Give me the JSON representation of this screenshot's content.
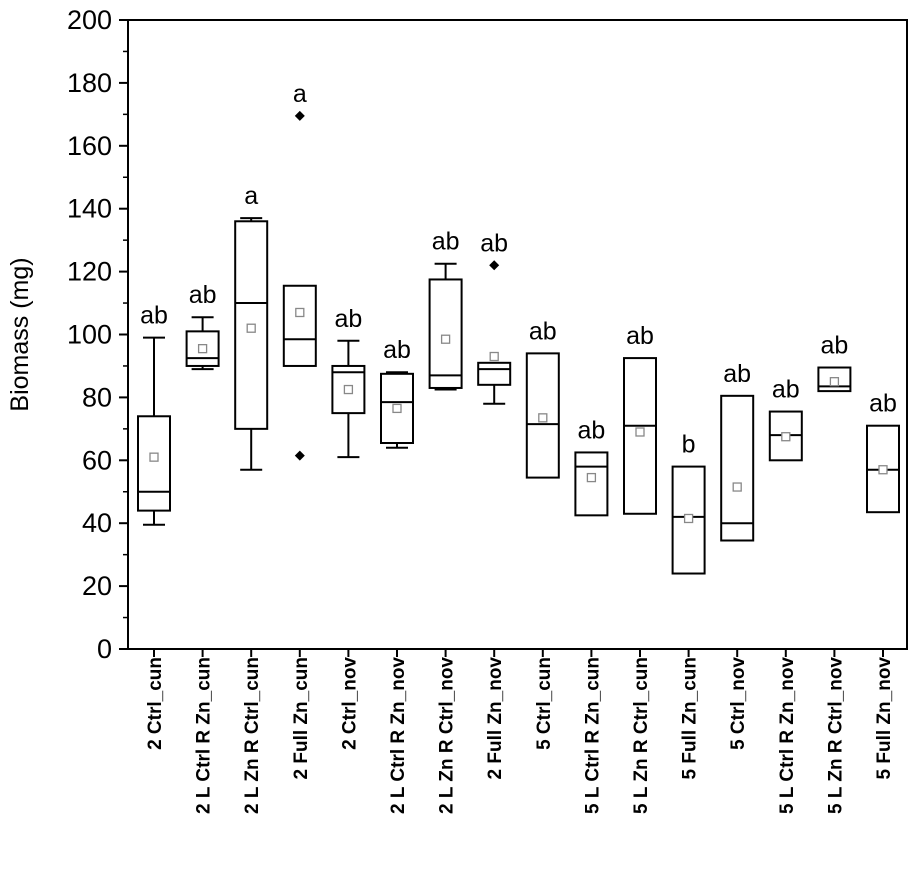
{
  "chart_data": {
    "type": "box",
    "xlabel": "",
    "ylabel": "Biomass (mg)",
    "ylim": [
      0,
      200
    ],
    "yticks": [
      0,
      20,
      40,
      60,
      80,
      100,
      120,
      140,
      160,
      180,
      200
    ],
    "grid": false,
    "legend": "none",
    "categories": [
      "2 Ctrl_cun",
      "2 L Ctrl R Zn_cun",
      "2 L Zn R Ctrl_cun",
      "2 Full Zn_cun",
      "2 Ctrl_nov",
      "2 L Ctrl R Zn_nov",
      "2 L Zn R Ctrl_nov",
      "2 Full Zn_nov",
      "5 Ctrl_cun",
      "5 L Ctrl R Zn_cun",
      "5 L Zn R Ctrl_cun",
      "5 Full Zn_cun",
      "5 Ctrl_nov",
      "5 L Ctrl R Zn_nov",
      "5 L Zn R Ctrl_nov",
      "5 Full Zn_nov"
    ],
    "boxes": [
      {
        "q1": 44,
        "median": 50,
        "q3": 74,
        "mean": 61,
        "whisker_low": 39.5,
        "whisker_high": 99,
        "outliers": [],
        "letter": "ab"
      },
      {
        "q1": 90,
        "median": 92.5,
        "q3": 101,
        "mean": 95.5,
        "whisker_low": 89,
        "whisker_high": 105.5,
        "outliers": [],
        "letter": "ab"
      },
      {
        "q1": 70,
        "median": 110,
        "q3": 136,
        "mean": 102,
        "whisker_low": 57,
        "whisker_high": 137,
        "outliers": [],
        "letter": "a"
      },
      {
        "q1": 90,
        "median": 98.5,
        "q3": 115.5,
        "mean": 107,
        "whisker_low": null,
        "whisker_high": null,
        "outliers": [
          169.5,
          61.5
        ],
        "letter": "a"
      },
      {
        "q1": 75,
        "median": 88,
        "q3": 90,
        "mean": 82.5,
        "whisker_low": 61,
        "whisker_high": 98,
        "outliers": [],
        "letter": "ab"
      },
      {
        "q1": 65.5,
        "median": 78.5,
        "q3": 87.5,
        "mean": 76.5,
        "whisker_low": 64,
        "whisker_high": 88,
        "outliers": [],
        "letter": "ab"
      },
      {
        "q1": 83,
        "median": 87,
        "q3": 117.5,
        "mean": 98.5,
        "whisker_low": 82.5,
        "whisker_high": 122.5,
        "outliers": [],
        "letter": "ab"
      },
      {
        "q1": 84,
        "median": 89,
        "q3": 91,
        "mean": 93,
        "whisker_low": 78,
        "whisker_high": null,
        "outliers": [
          122
        ],
        "letter": "ab"
      },
      {
        "q1": 54.5,
        "median": 71.5,
        "q3": 94,
        "mean": 73.5,
        "whisker_low": null,
        "whisker_high": null,
        "outliers": [],
        "letter": "ab"
      },
      {
        "q1": 42.5,
        "median": 58,
        "q3": 62.5,
        "mean": 54.5,
        "whisker_low": null,
        "whisker_high": null,
        "outliers": [],
        "letter": "ab"
      },
      {
        "q1": 43,
        "median": 71,
        "q3": 92.5,
        "mean": 69,
        "whisker_low": null,
        "whisker_high": null,
        "outliers": [],
        "letter": "ab"
      },
      {
        "q1": 24,
        "median": 42,
        "q3": 58,
        "mean": 41.5,
        "whisker_low": null,
        "whisker_high": null,
        "outliers": [],
        "letter": "b"
      },
      {
        "q1": 34.5,
        "median": 40,
        "q3": 80.5,
        "mean": 51.5,
        "whisker_low": null,
        "whisker_high": null,
        "outliers": [],
        "letter": "ab"
      },
      {
        "q1": 60,
        "median": 68,
        "q3": 75.5,
        "mean": 67.5,
        "whisker_low": null,
        "whisker_high": null,
        "outliers": [],
        "letter": "ab"
      },
      {
        "q1": 82,
        "median": 83.5,
        "q3": 89.5,
        "mean": 85,
        "whisker_low": null,
        "whisker_high": null,
        "outliers": [],
        "letter": "ab"
      },
      {
        "q1": 43.5,
        "median": 57,
        "q3": 71,
        "mean": 57,
        "whisker_low": null,
        "whisker_high": null,
        "outliers": [],
        "letter": "ab"
      }
    ],
    "colors": {
      "box": "#000000",
      "mean_marker": "#888888",
      "outlier": "#000000"
    }
  }
}
